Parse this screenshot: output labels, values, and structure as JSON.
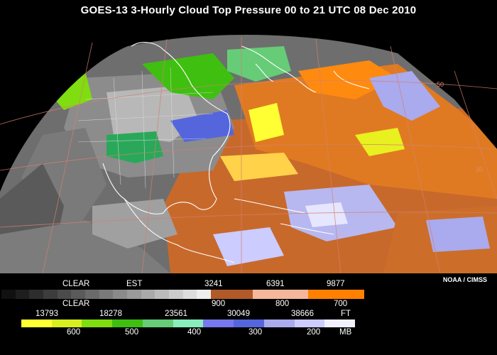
{
  "title": "GOES-13 3-Hourly Cloud Top Pressure  00 to 21 UTC  08 Dec 2010",
  "credit": "NOAA / CIMSS",
  "map": {
    "region": "North America / Atlantic satellite view",
    "graticule_labels": [
      "50",
      "30"
    ]
  },
  "legend": {
    "row1": {
      "labels": [
        "CLEAR",
        "EST",
        "3241",
        "6391",
        "9877"
      ],
      "colors": [
        "#111111",
        "#1e1e1e",
        "#2d2d2d",
        "#3c3c3c",
        "#4b4b4b",
        "#5a5a5a",
        "#6a6a6a",
        "#7a7a7a",
        "#8a8a8a",
        "#9a9a9a",
        "#aaaaaa",
        "#bbbbbb",
        "#cccccc",
        "#dddddd",
        "#eeeeee",
        "#a0522d",
        "#c26a2e",
        "#f0a98a",
        "#f4b79b",
        "#ff8800",
        "#ff7a00"
      ]
    },
    "row2": {
      "labels": [
        "CLEAR",
        "900",
        "800",
        "700"
      ]
    },
    "row3": {
      "labels": [
        "13793",
        "18278",
        "23561",
        "30049",
        "38666",
        "FT"
      ],
      "colors": [
        "#ffff33",
        "#e0f020",
        "#7fdd10",
        "#3fbf10",
        "#66cc77",
        "#55dd99",
        "#7777ee",
        "#5566dd",
        "#aaaaee",
        "#ccccff",
        "#e6e6ff"
      ]
    },
    "row4": {
      "labels": [
        "600",
        "500",
        "400",
        "300",
        "200",
        "MB"
      ]
    }
  }
}
